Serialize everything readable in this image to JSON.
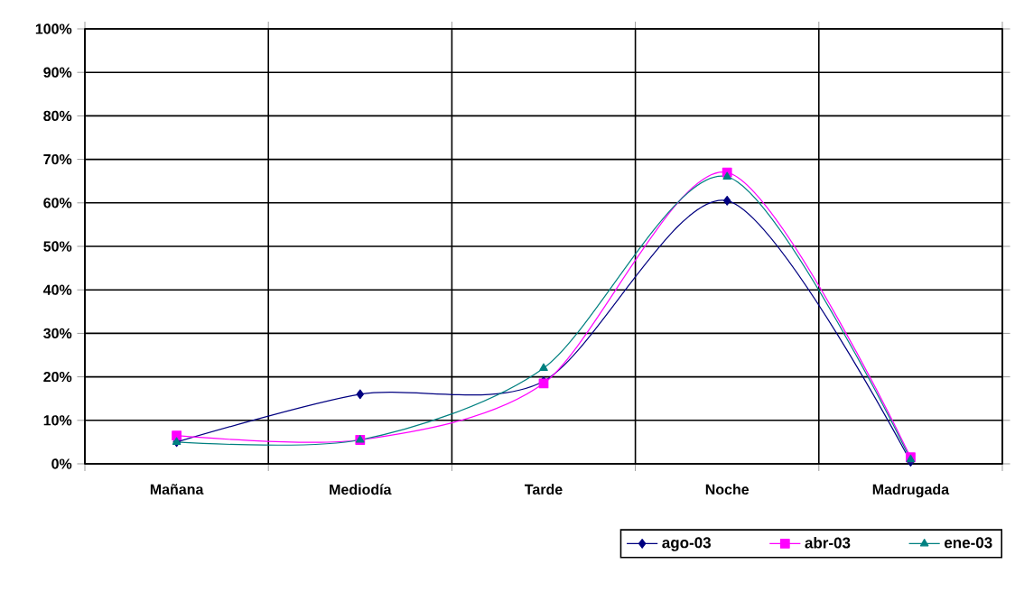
{
  "chart_data": {
    "type": "line",
    "categories": [
      "Mañana",
      "Mediodía",
      "Tarde",
      "Noche",
      "Madrugada"
    ],
    "series": [
      {
        "name": "ago-03",
        "color": "#000080",
        "marker": "diamond",
        "values": [
          5,
          16,
          19,
          60.5,
          0.5
        ]
      },
      {
        "name": "abr-03",
        "color": "#ff00ff",
        "marker": "square",
        "values": [
          6.5,
          5.5,
          18.5,
          67,
          1.5
        ]
      },
      {
        "name": "ene-03",
        "color": "#008080",
        "marker": "triangle",
        "values": [
          5,
          5.5,
          22,
          66,
          1
        ]
      }
    ],
    "ylim": [
      0,
      100
    ],
    "yticks": [
      {
        "value": 0,
        "label": "0%"
      },
      {
        "value": 10,
        "label": "10%"
      },
      {
        "value": 20,
        "label": "20%"
      },
      {
        "value": 30,
        "label": "30%"
      },
      {
        "value": 40,
        "label": "40%"
      },
      {
        "value": 50,
        "label": "50%"
      },
      {
        "value": 60,
        "label": "60%"
      },
      {
        "value": 70,
        "label": "70%"
      },
      {
        "value": 80,
        "label": "80%"
      },
      {
        "value": 90,
        "label": "90%"
      },
      {
        "value": 100,
        "label": "100%"
      }
    ],
    "grid": true,
    "legend": "bottom right",
    "line_style": "solid"
  }
}
